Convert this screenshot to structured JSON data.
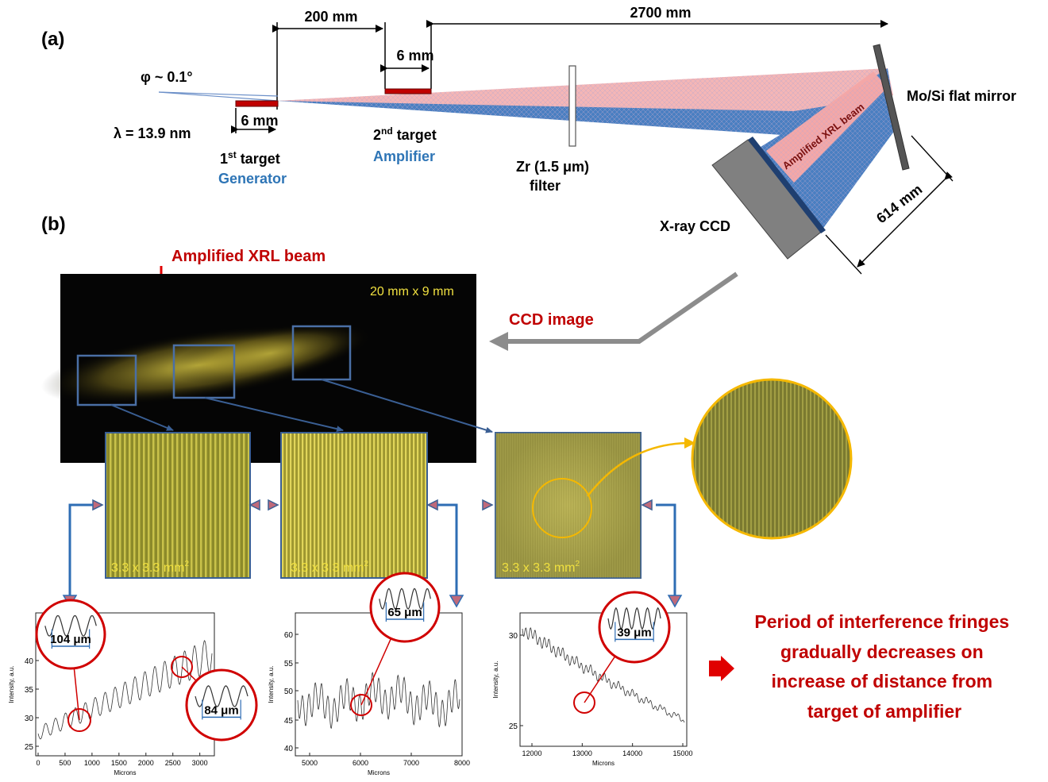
{
  "panel_a": {
    "label": "(a)",
    "dim_200": "200 mm",
    "dim_2700": "2700 mm",
    "dim_6_top": "6 mm",
    "dim_6_bottom": "6 mm",
    "phi": "φ ~ 0.1°",
    "lambda": "λ = 13.9 nm",
    "target1_main": "1",
    "target1_sup": "st",
    "target1_rest": " target",
    "target1_role": "Generator",
    "target2_main": "2",
    "target2_sup": "nd",
    "target2_rest": " target",
    "target2_role": "Amplifier",
    "filter_line1": "Zr (1.5 μm)",
    "filter_line2": "filter",
    "mirror": "Mo/Si flat mirror",
    "beam_label": "Amplified XRL beam",
    "ccd_label": "X-ray CCD",
    "dim_614": "614 mm",
    "colors": {
      "role": "#2e75b6",
      "target": "#c00000",
      "beam_red": "#f4a7a7",
      "beam_blue": "#4a7fc1"
    }
  },
  "panel_b": {
    "label": "(b)",
    "beam_annotation": "Amplified XRL beam",
    "ccd_size": "20 mm x 9 mm",
    "ccd_image_label": "CCD image",
    "zoom_label": "3.3 x 3.3 mm",
    "zoom_sup": "2",
    "conclusion": [
      "Period of interference fringes",
      "gradually decreases on",
      "increase of distance from",
      "target of amplifier"
    ],
    "colors": {
      "red": "#c00000",
      "yellow": "#f0e040",
      "box_blue": "#4a6fa5",
      "gold": "#f5b800"
    }
  },
  "plots": [
    {
      "ylabel": "Intensity, a.u.",
      "xlabel": "Microns",
      "yticks": [
        "25",
        "30",
        "35",
        "40"
      ],
      "xticks": [
        "0",
        "500",
        "1000",
        "1500",
        "2000",
        "2500",
        "3000"
      ],
      "insets": [
        "104 μm",
        "84 μm"
      ]
    },
    {
      "ylabel": "Intensity, a.u.",
      "xlabel": "Microns",
      "yticks": [
        "40",
        "45",
        "50",
        "55",
        "60"
      ],
      "xticks": [
        "5000",
        "6000",
        "7000",
        "8000"
      ],
      "insets": [
        "65 μm"
      ]
    },
    {
      "ylabel": "Intensity, a.u.",
      "xlabel": "Microns",
      "yticks": [
        "25",
        "30"
      ],
      "xticks": [
        "12000",
        "13000",
        "14000",
        "15000"
      ],
      "insets": [
        "39 μm"
      ]
    }
  ]
}
